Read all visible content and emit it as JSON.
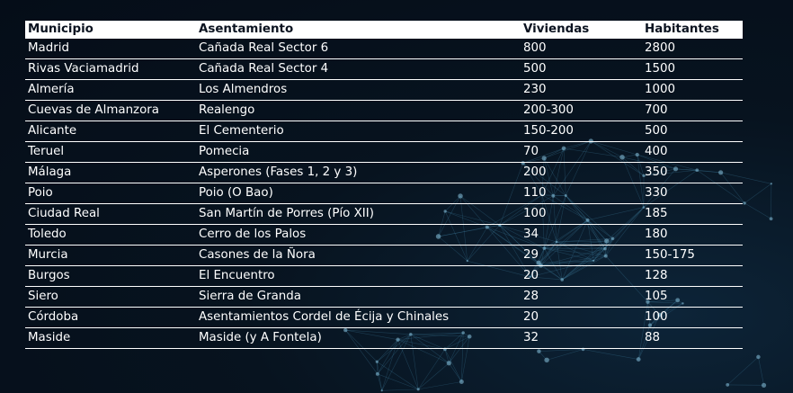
{
  "table": {
    "headers": [
      "Municipio",
      "Asentamiento",
      "Viviendas",
      "Habitantes"
    ],
    "rows": [
      [
        "Madrid",
        "Cañada Real Sector 6",
        "800",
        "2800"
      ],
      [
        "Rivas Vaciamadrid",
        "Cañada Real Sector 4",
        "500",
        "1500"
      ],
      [
        "Almería",
        "Los Almendros",
        "230",
        "1000"
      ],
      [
        "Cuevas de Almanzora",
        "Realengo",
        "200-300",
        "700"
      ],
      [
        "Alicante",
        "El Cementerio",
        "150-200",
        "500"
      ],
      [
        "Teruel",
        "Pomecia",
        "70",
        "400"
      ],
      [
        "Málaga",
        "Asperones (Fases 1, 2 y 3)",
        "200",
        "350"
      ],
      [
        "Poio",
        "Poio (O Bao)",
        "110",
        "330"
      ],
      [
        "Ciudad Real",
        "San Martín de Porres (Pío XII)",
        "100",
        "185"
      ],
      [
        "Toledo",
        "Cerro de los Palos",
        "34",
        "180"
      ],
      [
        "Murcia",
        "Casones de la Ñora",
        "29",
        "150-175"
      ],
      [
        "Burgos",
        "El Encuentro",
        "20",
        "128"
      ],
      [
        "Siero",
        "Sierra de Granda",
        "28",
        "105"
      ],
      [
        "Córdoba",
        "Asentamientos Cordel de Écija y Chinales",
        "20",
        "100"
      ],
      [
        "Maside",
        "Maside (y A Fontela)",
        "32",
        "88"
      ]
    ]
  },
  "colors": {
    "background": "#061120",
    "header_bg": "#ffffff",
    "header_text": "#0b1320",
    "text": "#ffffff",
    "network_accent": "#3f7fa0"
  }
}
